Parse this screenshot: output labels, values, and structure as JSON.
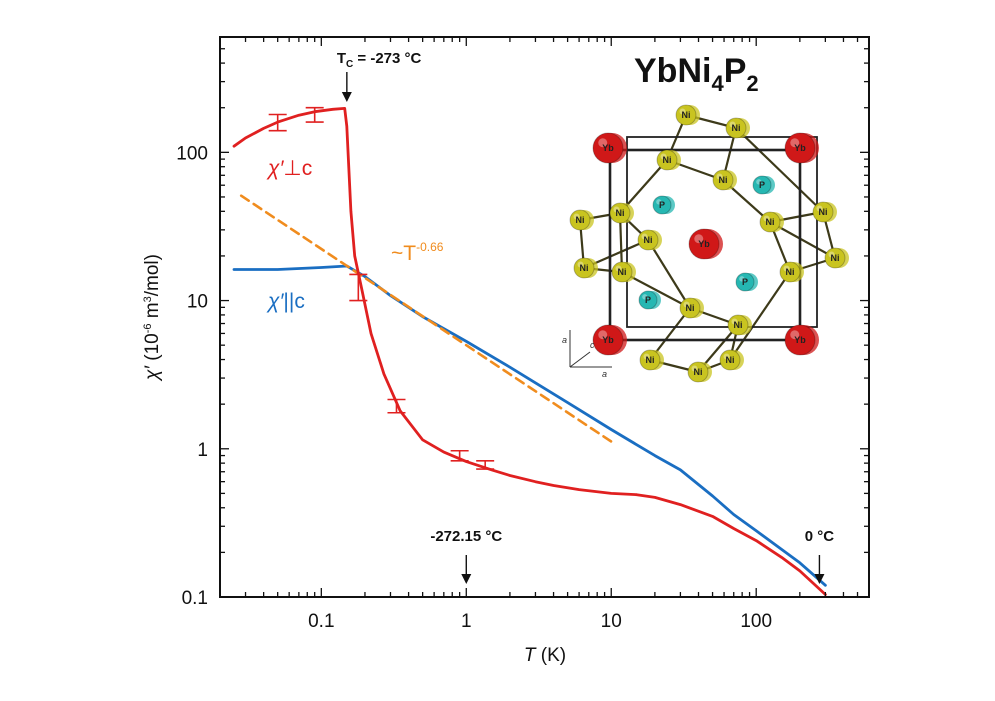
{
  "chart_data": {
    "type": "line",
    "xlabel": "T (K)",
    "ylabel": "χ′ (10⁻⁶ m³/mol)",
    "xscale": "log",
    "yscale": "log",
    "xlim": [
      0.02,
      600
    ],
    "ylim": [
      0.1,
      600
    ],
    "x_ticks": [
      {
        "value": 0.1,
        "label": "0.1"
      },
      {
        "value": 1,
        "label": "1"
      },
      {
        "value": 10,
        "label": "10"
      },
      {
        "value": 100,
        "label": "100"
      }
    ],
    "y_ticks": [
      {
        "value": 0.1,
        "label": "0.1"
      },
      {
        "value": 1,
        "label": "1"
      },
      {
        "value": 10,
        "label": "10"
      },
      {
        "value": 100,
        "label": "100"
      }
    ],
    "series": [
      {
        "name": "χ′⊥c",
        "color": "#e02020",
        "points": [
          [
            0.025,
            110
          ],
          [
            0.03,
            125
          ],
          [
            0.04,
            145
          ],
          [
            0.05,
            160
          ],
          [
            0.07,
            178
          ],
          [
            0.09,
            188
          ],
          [
            0.12,
            195
          ],
          [
            0.145,
            198
          ],
          [
            0.15,
            150
          ],
          [
            0.16,
            40
          ],
          [
            0.17,
            20
          ],
          [
            0.19,
            12
          ],
          [
            0.22,
            6
          ],
          [
            0.27,
            3.2
          ],
          [
            0.35,
            1.8
          ],
          [
            0.5,
            1.15
          ],
          [
            0.7,
            0.95
          ],
          [
            1,
            0.82
          ],
          [
            1.5,
            0.72
          ],
          [
            2,
            0.66
          ],
          [
            3,
            0.6
          ],
          [
            4,
            0.565
          ],
          [
            6,
            0.53
          ],
          [
            10,
            0.5
          ],
          [
            15,
            0.49
          ],
          [
            20,
            0.47
          ],
          [
            30,
            0.42
          ],
          [
            50,
            0.35
          ],
          [
            70,
            0.29
          ],
          [
            100,
            0.24
          ],
          [
            150,
            0.185
          ],
          [
            200,
            0.15
          ],
          [
            300,
            0.104
          ]
        ]
      },
      {
        "name": "χ′||c",
        "color": "#1a6ec2",
        "points": [
          [
            0.025,
            16.2
          ],
          [
            0.05,
            16.2
          ],
          [
            0.1,
            16.7
          ],
          [
            0.15,
            17.1
          ],
          [
            0.2,
            14.5
          ],
          [
            0.3,
            10.8
          ],
          [
            0.5,
            7.8
          ],
          [
            1,
            5.3
          ],
          [
            2,
            3.55
          ],
          [
            5,
            2.05
          ],
          [
            10,
            1.35
          ],
          [
            20,
            0.9
          ],
          [
            30,
            0.72
          ],
          [
            50,
            0.48
          ],
          [
            70,
            0.36
          ],
          [
            100,
            0.28
          ],
          [
            200,
            0.17
          ],
          [
            300,
            0.12
          ]
        ]
      },
      {
        "name": "~T-0.66",
        "color": "#f08c1e",
        "style": "dashed",
        "points": [
          [
            0.028,
            51
          ],
          [
            10,
            1.12
          ]
        ]
      }
    ],
    "error_bars": [
      {
        "series": "χ′⊥c",
        "x": 0.05,
        "y": 160,
        "ylow": 140,
        "yhigh": 180
      },
      {
        "series": "χ′⊥c",
        "x": 0.09,
        "y": 180,
        "ylow": 160,
        "yhigh": 200
      },
      {
        "series": "χ′⊥c",
        "x": 0.18,
        "y": 12.5,
        "ylow": 10,
        "yhigh": 15
      },
      {
        "series": "χ′⊥c",
        "x": 0.33,
        "y": 1.95,
        "ylow": 1.75,
        "yhigh": 2.15
      },
      {
        "series": "χ′⊥c",
        "x": 0.9,
        "y": 0.9,
        "ylow": 0.83,
        "yhigh": 0.97
      },
      {
        "series": "χ′⊥c",
        "x": 1.35,
        "y": 0.78,
        "ylow": 0.73,
        "yhigh": 0.83
      }
    ],
    "series_labels": {
      "perp": {
        "chi": "χ′",
        "sep": "⊥",
        "dir": "c"
      },
      "par": {
        "chi": "χ′",
        "sep": "||",
        "dir": "c"
      },
      "power": {
        "prefix": "~T",
        "exp": "-0.66"
      }
    },
    "annotations": {
      "tc": {
        "label": "T",
        "sub": "C",
        "rest": " = -273 °C",
        "x": 0.15
      },
      "one_kelvin": {
        "label": "-272.15 °C",
        "x": 1
      },
      "zero_c": {
        "label": "0 °C",
        "x": 273
      }
    },
    "ylabel_parts": {
      "chi": "χ′",
      "pre": " (10",
      "exp1": "-6",
      "mid": " m",
      "exp2": "3",
      "post": "/mol)"
    },
    "xlabel_parts": {
      "var": "T",
      "unit": " (K)"
    }
  },
  "formula": {
    "a": "YbNi",
    "b": "4",
    "c": "P",
    "d": "2"
  },
  "crystal": {
    "atoms": {
      "yb": "Yb",
      "ni": "Ni",
      "p": "P"
    },
    "axes": {
      "a_up": "a",
      "c": "c",
      "a_right": "a"
    }
  },
  "colors": {
    "red": "#e02020",
    "blue": "#1a6ec2",
    "orange": "#f08c1e",
    "yb": "#d01818",
    "ni": "#c9c420",
    "p": "#26b7b2"
  }
}
